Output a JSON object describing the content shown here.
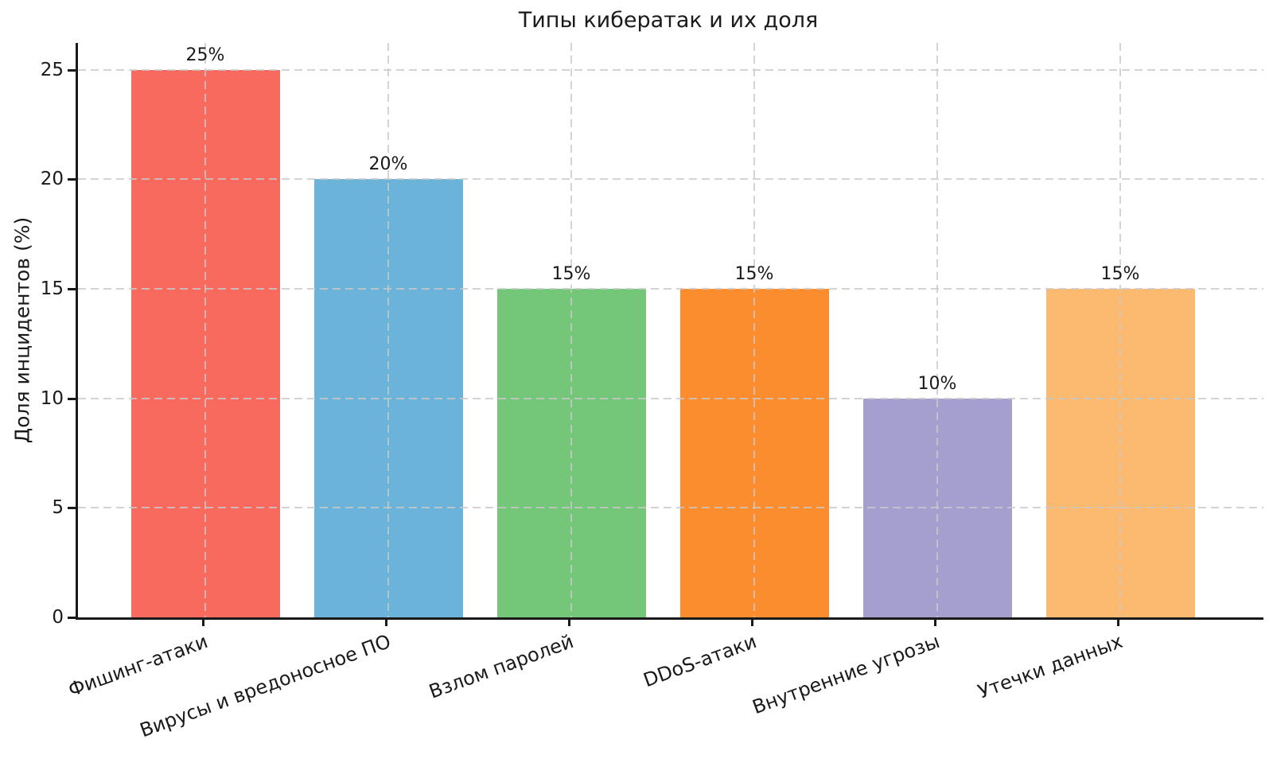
{
  "chart_data": {
    "type": "bar",
    "title": "Типы кибератак и их доля",
    "ylabel": "Доля инцидентов (%)",
    "xlabel": "",
    "categories": [
      "Фишинг-атаки",
      "Вирусы и вредоносное ПО",
      "Взлом паролей",
      "DDoS-атаки",
      "Внутренние угрозы",
      "Утечки данных"
    ],
    "values": [
      25,
      20,
      15,
      15,
      10,
      15
    ],
    "bar_labels": [
      "25%",
      "20%",
      "15%",
      "15%",
      "10%",
      "15%"
    ],
    "colors": [
      "#F8695E",
      "#6BB3D9",
      "#74C678",
      "#FB8D2E",
      "#A49FCE",
      "#FCBA70"
    ],
    "yticks": [
      "0",
      "5",
      "10",
      "15",
      "20",
      "25"
    ],
    "ylim": [
      0,
      26.2
    ],
    "grid": "dashed-both-axes-over-bars",
    "legend": "none",
    "background": "#ffffff",
    "text_color": "#1a1a1a"
  }
}
